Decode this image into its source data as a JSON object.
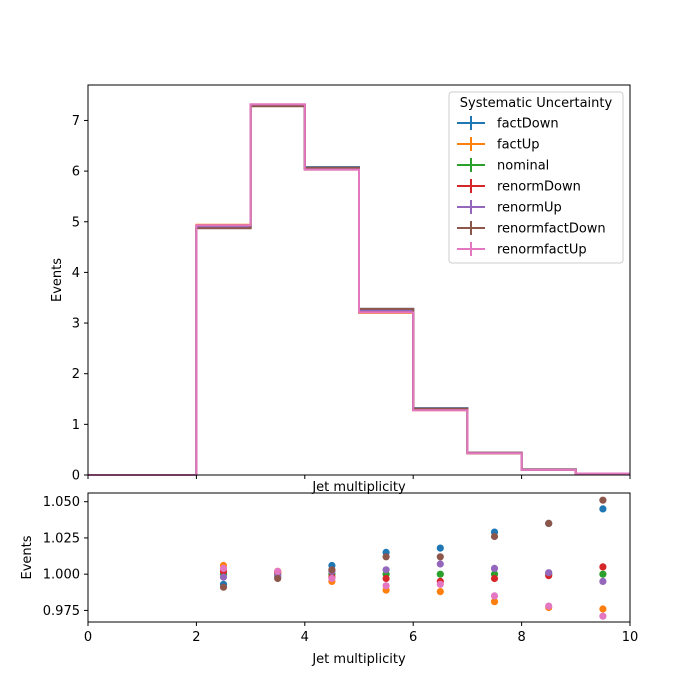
{
  "chart_data": [
    {
      "type": "line",
      "panel": "main",
      "xlabel": "Jet multiplicity",
      "ylabel": "Events",
      "xlim": [
        0,
        10
      ],
      "ylim": [
        0,
        7.7
      ],
      "xticks": [
        0,
        2,
        4,
        6,
        8,
        10
      ],
      "yticks": [
        0,
        1,
        2,
        3,
        4,
        5,
        6,
        7
      ],
      "grid": false,
      "legend": {
        "title": "Systematic Uncertainty",
        "placement": "top-right"
      },
      "bin_edges": [
        0,
        1,
        2,
        3,
        4,
        5,
        6,
        7,
        8,
        9,
        10
      ],
      "series": [
        {
          "name": "factDown",
          "color": "#1f77b4",
          "values": [
            0,
            0,
            4.88,
            7.29,
            6.08,
            3.28,
            1.32,
            0.44,
            0.11,
            0.03
          ]
        },
        {
          "name": "factUp",
          "color": "#ff7f0e",
          "values": [
            0,
            0,
            4.94,
            7.31,
            6.03,
            3.2,
            1.28,
            0.43,
            0.1,
            0.03
          ]
        },
        {
          "name": "nominal",
          "color": "#2ca02c",
          "values": [
            0,
            0,
            4.91,
            7.3,
            6.05,
            3.24,
            1.3,
            0.43,
            0.105,
            0.03
          ]
        },
        {
          "name": "renormDown",
          "color": "#d62728",
          "values": [
            0,
            0,
            4.92,
            7.31,
            6.04,
            3.23,
            1.29,
            0.43,
            0.105,
            0.03
          ]
        },
        {
          "name": "renormUp",
          "color": "#9467bd",
          "values": [
            0,
            0,
            4.9,
            7.3,
            6.06,
            3.25,
            1.31,
            0.44,
            0.105,
            0.03
          ]
        },
        {
          "name": "renormfactDown",
          "color": "#8c564b",
          "values": [
            0,
            0,
            4.87,
            7.28,
            6.07,
            3.28,
            1.31,
            0.44,
            0.11,
            0.03
          ]
        },
        {
          "name": "renormfactUp",
          "color": "#e377c2",
          "values": [
            0,
            0,
            4.93,
            7.32,
            6.03,
            3.21,
            1.28,
            0.43,
            0.1,
            0.03
          ]
        }
      ]
    },
    {
      "type": "scatter",
      "panel": "ratio",
      "xlabel": "Jet multiplicity",
      "ylabel": "Events",
      "xlim": [
        0,
        10
      ],
      "ylim": [
        0.967,
        1.056
      ],
      "xticks": [
        0,
        2,
        4,
        6,
        8,
        10
      ],
      "yticks": [
        0.975,
        1.0,
        1.025,
        1.05
      ],
      "ytick_labels": [
        "0.975",
        "1.000",
        "1.025",
        "1.050"
      ],
      "grid": false,
      "x": [
        2.5,
        3.5,
        4.5,
        5.5,
        6.5,
        7.5,
        8.5,
        9.5
      ],
      "series": [
        {
          "color": "#1f77b4",
          "values": [
            0.993,
            0.998,
            1.006,
            1.015,
            1.018,
            1.029,
            1.035,
            1.045
          ]
        },
        {
          "color": "#ff7f0e",
          "values": [
            1.006,
            1.002,
            0.995,
            0.989,
            0.988,
            0.981,
            0.977,
            0.976
          ]
        },
        {
          "color": "#2ca02c",
          "values": [
            1.0,
            1.0,
            1.0,
            1.0,
            1.0,
            1.0,
            1.0,
            1.0
          ]
        },
        {
          "color": "#d62728",
          "values": [
            1.002,
            1.001,
            0.998,
            0.997,
            0.995,
            0.997,
            0.999,
            1.005
          ]
        },
        {
          "color": "#9467bd",
          "values": [
            0.998,
            0.999,
            1.002,
            1.003,
            1.007,
            1.004,
            1.001,
            0.995
          ]
        },
        {
          "color": "#8c564b",
          "values": [
            0.991,
            0.997,
            1.003,
            1.012,
            1.012,
            1.026,
            1.035,
            1.051
          ]
        },
        {
          "color": "#e377c2",
          "values": [
            1.004,
            1.002,
            0.997,
            0.992,
            0.993,
            0.985,
            0.978,
            0.971
          ]
        }
      ]
    }
  ]
}
